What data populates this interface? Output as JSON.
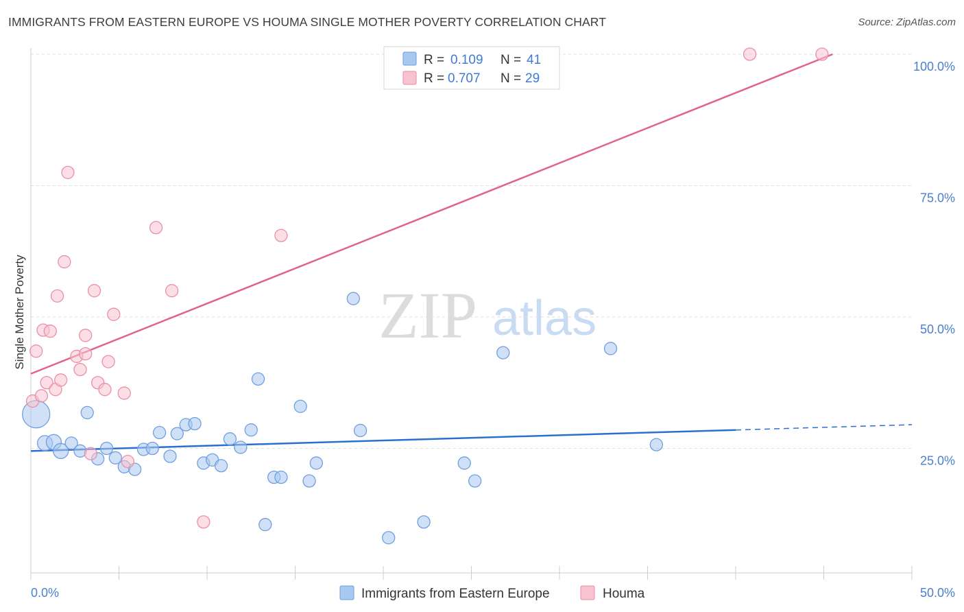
{
  "title": "IMMIGRANTS FROM EASTERN EUROPE VS HOUMA SINGLE MOTHER POVERTY CORRELATION CHART",
  "source": "Source: ZipAtlas.com",
  "watermark": {
    "zip": "ZIP",
    "atlas": "atlas"
  },
  "legend_top": [
    {
      "r_label": "R =",
      "r_value": "0.109",
      "n_label": "N =",
      "n_value": "41",
      "color": "#a9c8f0",
      "stroke": "#6b9fe0"
    },
    {
      "r_label": "R =",
      "r_value": "0.707",
      "n_label": "N =",
      "n_value": "29",
      "color": "#f7c3d1",
      "stroke": "#e88aa5"
    }
  ],
  "legend_bottom": [
    {
      "label": "Immigrants from Eastern Europe",
      "color": "#a9c8f0",
      "stroke": "#6b9fe0"
    },
    {
      "label": "Houma",
      "color": "#f7c3d1",
      "stroke": "#e88aa5"
    }
  ],
  "colors": {
    "blue_fill": "#a9c8f0",
    "blue_stroke": "#6f9fdf",
    "blue_line": "#2a6fd0",
    "pink_fill": "#f7c3d1",
    "pink_stroke": "#e890a8",
    "pink_line": "#e0648a",
    "grid": "#dddddd",
    "axis_label": "#4a7fd0"
  },
  "chart_data": {
    "type": "scatter",
    "title": "IMMIGRANTS FROM EASTERN EUROPE VS HOUMA SINGLE MOTHER POVERTY CORRELATION CHART",
    "xlabel": "",
    "ylabel": "Single Mother Poverty",
    "xlim": [
      0,
      50
    ],
    "ylim": [
      0,
      102
    ],
    "x_tick_labels": [
      "0.0%",
      "50.0%"
    ],
    "y_ticks": [
      25,
      50,
      75,
      100
    ],
    "y_tick_labels": [
      "25.0%",
      "50.0%",
      "75.0%",
      "100.0%"
    ],
    "series": [
      {
        "name": "Immigrants from Eastern Europe",
        "r": 0.109,
        "n": 41,
        "trend": {
          "x0": 0,
          "y0": 24.5,
          "x1": 40,
          "y1": 28.5,
          "dash_to_x": 50,
          "dash_to_y": 29.5
        },
        "points": [
          {
            "x": 0.3,
            "y": 31.5,
            "big": true
          },
          {
            "x": 0.8,
            "y": 26.0
          },
          {
            "x": 1.3,
            "y": 26.2
          },
          {
            "x": 1.7,
            "y": 24.5
          },
          {
            "x": 2.3,
            "y": 26.0
          },
          {
            "x": 2.8,
            "y": 24.5
          },
          {
            "x": 3.2,
            "y": 31.8
          },
          {
            "x": 3.8,
            "y": 23.0
          },
          {
            "x": 4.3,
            "y": 25.0
          },
          {
            "x": 4.8,
            "y": 23.2
          },
          {
            "x": 5.3,
            "y": 21.5
          },
          {
            "x": 5.9,
            "y": 21.0
          },
          {
            "x": 6.4,
            "y": 24.8
          },
          {
            "x": 6.9,
            "y": 25.0
          },
          {
            "x": 7.3,
            "y": 28.0
          },
          {
            "x": 7.9,
            "y": 23.5
          },
          {
            "x": 8.3,
            "y": 27.8
          },
          {
            "x": 8.8,
            "y": 29.5
          },
          {
            "x": 9.3,
            "y": 29.7
          },
          {
            "x": 9.8,
            "y": 22.2
          },
          {
            "x": 10.3,
            "y": 22.8
          },
          {
            "x": 10.8,
            "y": 21.7
          },
          {
            "x": 11.3,
            "y": 26.8
          },
          {
            "x": 11.9,
            "y": 25.2
          },
          {
            "x": 12.5,
            "y": 28.5
          },
          {
            "x": 12.9,
            "y": 38.2
          },
          {
            "x": 13.3,
            "y": 10.5
          },
          {
            "x": 13.8,
            "y": 19.5
          },
          {
            "x": 14.2,
            "y": 19.5
          },
          {
            "x": 15.3,
            "y": 33.0
          },
          {
            "x": 15.8,
            "y": 18.8
          },
          {
            "x": 16.2,
            "y": 22.2
          },
          {
            "x": 18.3,
            "y": 53.5
          },
          {
            "x": 18.7,
            "y": 28.4
          },
          {
            "x": 20.3,
            "y": 8.0
          },
          {
            "x": 22.3,
            "y": 11.0
          },
          {
            "x": 24.6,
            "y": 22.2
          },
          {
            "x": 25.2,
            "y": 18.8
          },
          {
            "x": 26.8,
            "y": 43.2
          },
          {
            "x": 32.9,
            "y": 44.0
          },
          {
            "x": 35.5,
            "y": 25.7
          }
        ]
      },
      {
        "name": "Houma",
        "r": 0.707,
        "n": 29,
        "trend": {
          "x0": 0,
          "y0": 39.2,
          "x1": 45.5,
          "y1": 100.0
        },
        "points": [
          {
            "x": 0.1,
            "y": 34.0
          },
          {
            "x": 0.3,
            "y": 43.5
          },
          {
            "x": 0.6,
            "y": 35.0
          },
          {
            "x": 0.7,
            "y": 47.5
          },
          {
            "x": 0.9,
            "y": 37.5
          },
          {
            "x": 1.1,
            "y": 47.3
          },
          {
            "x": 1.4,
            "y": 36.2
          },
          {
            "x": 1.5,
            "y": 54.0
          },
          {
            "x": 1.7,
            "y": 38.0
          },
          {
            "x": 1.9,
            "y": 60.5
          },
          {
            "x": 2.1,
            "y": 77.5
          },
          {
            "x": 2.6,
            "y": 42.5
          },
          {
            "x": 2.8,
            "y": 40.0
          },
          {
            "x": 3.1,
            "y": 43.0
          },
          {
            "x": 3.1,
            "y": 46.5
          },
          {
            "x": 3.4,
            "y": 24.0
          },
          {
            "x": 3.6,
            "y": 55.0
          },
          {
            "x": 3.8,
            "y": 37.5
          },
          {
            "x": 4.2,
            "y": 36.2
          },
          {
            "x": 4.4,
            "y": 41.5
          },
          {
            "x": 4.7,
            "y": 50.5
          },
          {
            "x": 5.3,
            "y": 35.5
          },
          {
            "x": 5.5,
            "y": 22.5
          },
          {
            "x": 7.1,
            "y": 67.0
          },
          {
            "x": 8.0,
            "y": 55.0
          },
          {
            "x": 9.8,
            "y": 11.0
          },
          {
            "x": 14.2,
            "y": 65.5
          },
          {
            "x": 40.8,
            "y": 100.0
          },
          {
            "x": 44.9,
            "y": 100.0
          }
        ]
      }
    ]
  }
}
